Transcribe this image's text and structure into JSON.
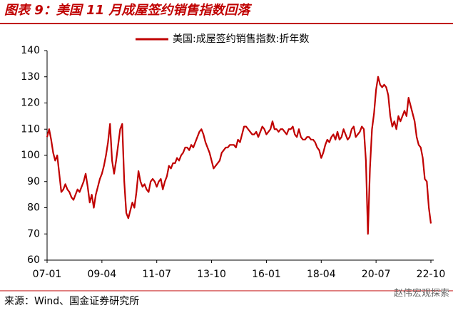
{
  "chart_data": {
    "type": "line",
    "title": "图表 9：美国 11 月成屋签约销售指数回落",
    "source": "来源：Wind、国金证券研究所",
    "watermark": "赵伟宏观探索",
    "categories": [
      "07-01",
      null,
      null,
      null,
      null,
      null,
      null,
      null,
      null,
      null,
      null,
      null,
      null,
      null,
      null,
      null,
      null,
      null,
      null,
      null,
      null,
      null,
      null,
      null,
      null,
      null,
      null,
      "09-04",
      null,
      null,
      null,
      null,
      null,
      null,
      null,
      null,
      null,
      null,
      null,
      null,
      null,
      null,
      null,
      null,
      null,
      null,
      null,
      null,
      null,
      null,
      null,
      null,
      null,
      null,
      "11-07",
      null,
      null,
      null,
      null,
      null,
      null,
      null,
      null,
      null,
      null,
      null,
      null,
      null,
      null,
      null,
      null,
      null,
      null,
      null,
      null,
      null,
      null,
      null,
      null,
      null,
      null,
      "13-10",
      null,
      null,
      null,
      null,
      null,
      null,
      null,
      null,
      null,
      null,
      null,
      null,
      null,
      null,
      null,
      null,
      null,
      null,
      null,
      null,
      null,
      null,
      null,
      null,
      null,
      null,
      "16-01",
      null,
      null,
      null,
      null,
      null,
      null,
      null,
      null,
      null,
      null,
      null,
      null,
      null,
      null,
      null,
      null,
      null,
      null,
      null,
      null,
      null,
      null,
      null,
      null,
      null,
      null,
      "18-04",
      null,
      null,
      null,
      null,
      null,
      null,
      null,
      null,
      null,
      null,
      null,
      null,
      null,
      null,
      null,
      null,
      null,
      null,
      null,
      null,
      null,
      null,
      null,
      null,
      null,
      null,
      "20-07",
      null,
      null,
      null,
      null,
      null,
      null,
      null,
      null,
      null,
      null,
      null,
      null,
      null,
      null,
      null,
      null,
      null,
      null,
      null,
      null,
      null,
      null,
      null,
      null,
      null,
      null,
      "22-10"
    ],
    "series": [
      {
        "name": "美国:成屋签约销售指数:折年数",
        "color": "#c00000",
        "values": [
          107,
          110,
          106,
          101,
          98,
          100,
          93,
          86,
          87,
          89,
          87,
          86,
          84,
          83,
          85,
          87,
          86,
          88,
          90,
          93,
          88,
          82,
          85,
          80,
          85,
          88,
          91,
          93,
          96,
          100,
          105,
          112,
          98,
          93,
          98,
          104,
          110,
          112,
          90,
          78,
          76,
          79,
          82,
          80,
          86,
          94,
          90,
          88,
          89,
          87,
          86,
          90,
          91,
          90,
          88,
          90,
          91,
          87,
          90,
          92,
          96,
          95,
          97,
          97,
          99,
          98,
          100,
          101,
          103,
          103,
          102,
          104,
          103,
          105,
          107,
          109,
          110,
          108,
          105,
          103,
          101,
          98,
          95,
          96,
          97,
          98,
          101,
          102,
          103,
          103,
          104,
          104,
          104,
          103,
          106,
          105,
          108,
          111,
          111,
          110,
          109,
          108,
          108,
          109,
          107,
          109,
          111,
          110,
          108,
          109,
          110,
          113,
          110,
          110,
          109,
          110,
          110,
          109,
          108,
          110,
          110,
          111,
          108,
          107,
          110,
          107,
          106,
          106,
          107,
          107,
          106,
          106,
          105,
          103,
          102,
          99,
          101,
          104,
          106,
          105,
          107,
          108,
          106,
          109,
          106,
          107,
          110,
          108,
          106,
          107,
          110,
          111,
          107,
          108,
          109,
          111,
          110,
          98,
          70,
          95,
          110,
          116,
          125,
          130,
          127,
          126,
          127,
          126,
          123,
          115,
          111,
          113,
          110,
          115,
          113,
          115,
          117,
          115,
          122,
          119,
          116,
          113,
          107,
          104,
          103,
          99,
          91,
          90,
          80,
          74
        ]
      }
    ],
    "ylim": [
      60,
      140
    ],
    "yticks": [
      60,
      70,
      80,
      90,
      100,
      110,
      120,
      130,
      140
    ],
    "grid": false,
    "legend": "top"
  }
}
